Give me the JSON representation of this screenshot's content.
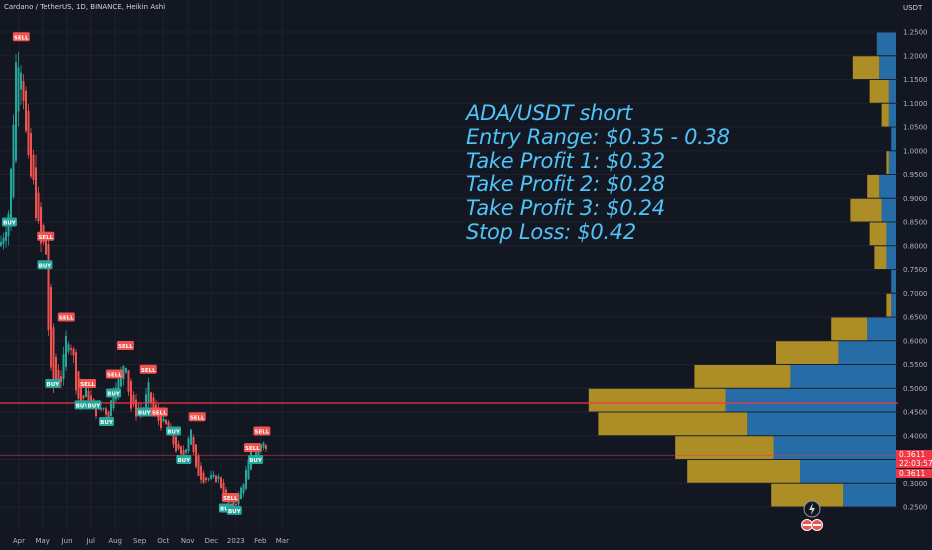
{
  "header": {
    "title": "Cardano / TetherUS, 1D, BINANCE, Heikin Ashi",
    "currency": "USDT"
  },
  "annotation": {
    "lines": [
      "ADA/USDT short",
      "Entry Range: $0.35 - 0.38",
      "Take Profit 1: $0.32",
      "Take Profit 2: $0.28",
      "Take Profit 3: $0.24",
      "Stop Loss: $0.42"
    ]
  },
  "price_tag": {
    "price": "0.3611",
    "countdown": "22:03:57",
    "price2": "0.3611"
  },
  "colors": {
    "background": "#131722",
    "up": "#26a69a",
    "down": "#ef5350",
    "annotation": "#4fc3f7",
    "level_line": "#f23645",
    "vp_up": "#2a7bbd",
    "vp_down": "#c9a227",
    "grid": "#1e222d"
  },
  "chart_data": {
    "type": "candlestick",
    "title": "Cardano / TetherUS, 1D, BINANCE, Heikin Ashi",
    "y_axis": {
      "range": [
        0.23,
        1.27
      ],
      "ticks": [
        "1.2500",
        "1.2000",
        "1.1500",
        "1.1000",
        "1.0500",
        "1.0000",
        "0.9500",
        "0.9000",
        "0.8500",
        "0.8000",
        "0.7500",
        "0.7000",
        "0.6500",
        "0.6000",
        "0.5500",
        "0.5000",
        "0.4500",
        "0.4000",
        "0.3500",
        "0.3000",
        "0.2500"
      ]
    },
    "x_axis": {
      "ticks": [
        "Apr",
        "May",
        "Jun",
        "Jul",
        "Aug",
        "Sep",
        "Oct",
        "Nov",
        "Dec",
        "2023",
        "Feb",
        "Mar"
      ]
    },
    "horizontal_levels": [
      0.469,
      0.359
    ],
    "signals": [
      {
        "label": "SELL",
        "date": "2022-04-04",
        "price": 1.24
      },
      {
        "label": "BUY",
        "date": "2022-03-20",
        "price": 0.85
      },
      {
        "label": "SELL",
        "date": "2022-05-05",
        "price": 0.82
      },
      {
        "label": "BUY",
        "date": "2022-05-04",
        "price": 0.76
      },
      {
        "label": "SELL",
        "date": "2022-05-31",
        "price": 0.65
      },
      {
        "label": "BUY",
        "date": "2022-05-14",
        "price": 0.51
      },
      {
        "label": "SELL",
        "date": "2022-06-27",
        "price": 0.51
      },
      {
        "label": "BUY",
        "date": "2022-06-20",
        "price": 0.465
      },
      {
        "label": "BUY",
        "date": "2022-07-05",
        "price": 0.465
      },
      {
        "label": "BUY",
        "date": "2022-07-21",
        "price": 0.43
      },
      {
        "label": "SELL",
        "date": "2022-07-31",
        "price": 0.53
      },
      {
        "label": "BUY",
        "date": "2022-07-30",
        "price": 0.49
      },
      {
        "label": "SELL",
        "date": "2022-08-14",
        "price": 0.59
      },
      {
        "label": "BUY",
        "date": "2022-09-07",
        "price": 0.45
      },
      {
        "label": "SELL",
        "date": "2022-09-12",
        "price": 0.54
      },
      {
        "label": "SELL",
        "date": "2022-09-26",
        "price": 0.45
      },
      {
        "label": "BUY",
        "date": "2022-10-14",
        "price": 0.41
      },
      {
        "label": "SELL",
        "date": "2022-11-13",
        "price": 0.44
      },
      {
        "label": "BUY",
        "date": "2022-10-27",
        "price": 0.35
      },
      {
        "label": "SELL",
        "date": "2022-12-25",
        "price": 0.27
      },
      {
        "label": "BUY",
        "date": "2022-12-20",
        "price": 0.248
      },
      {
        "label": "BUY",
        "date": "2022-12-30",
        "price": 0.243
      },
      {
        "label": "SELL",
        "date": "2023-01-22",
        "price": 0.375
      },
      {
        "label": "BUY",
        "date": "2023-01-26",
        "price": 0.35
      },
      {
        "label": "SELL",
        "date": "2023-02-03",
        "price": 0.41
      }
    ],
    "volume_profile": [
      {
        "price_low": 1.2,
        "price_high": 1.25,
        "up": 0.08,
        "down": 0.0
      },
      {
        "price_low": 1.15,
        "price_high": 1.2,
        "up": 0.07,
        "down": 0.11
      },
      {
        "price_low": 1.1,
        "price_high": 1.15,
        "up": 0.03,
        "down": 0.08
      },
      {
        "price_low": 1.05,
        "price_high": 1.1,
        "up": 0.03,
        "down": 0.03
      },
      {
        "price_low": 1.0,
        "price_high": 1.05,
        "up": 0.02,
        "down": 0.0
      },
      {
        "price_low": 0.95,
        "price_high": 1.0,
        "up": 0.03,
        "down": 0.01
      },
      {
        "price_low": 0.9,
        "price_high": 0.95,
        "up": 0.07,
        "down": 0.05
      },
      {
        "price_low": 0.85,
        "price_high": 0.9,
        "up": 0.06,
        "down": 0.13
      },
      {
        "price_low": 0.8,
        "price_high": 0.85,
        "up": 0.04,
        "down": 0.07
      },
      {
        "price_low": 0.75,
        "price_high": 0.8,
        "up": 0.04,
        "down": 0.05
      },
      {
        "price_low": 0.7,
        "price_high": 0.75,
        "up": 0.02,
        "down": 0.0
      },
      {
        "price_low": 0.65,
        "price_high": 0.7,
        "up": 0.02,
        "down": 0.02
      },
      {
        "price_low": 0.6,
        "price_high": 0.65,
        "up": 0.12,
        "down": 0.15
      },
      {
        "price_low": 0.55,
        "price_high": 0.6,
        "up": 0.24,
        "down": 0.26
      },
      {
        "price_low": 0.5,
        "price_high": 0.55,
        "up": 0.44,
        "down": 0.4
      },
      {
        "price_low": 0.45,
        "price_high": 0.5,
        "up": 0.71,
        "down": 0.57
      },
      {
        "price_low": 0.4,
        "price_high": 0.45,
        "up": 0.62,
        "down": 0.62
      },
      {
        "price_low": 0.35,
        "price_high": 0.4,
        "up": 0.51,
        "down": 0.41
      },
      {
        "price_low": 0.3,
        "price_high": 0.35,
        "up": 0.4,
        "down": 0.47
      },
      {
        "price_low": 0.25,
        "price_high": 0.3,
        "up": 0.22,
        "down": 0.3
      }
    ],
    "grid": true
  }
}
